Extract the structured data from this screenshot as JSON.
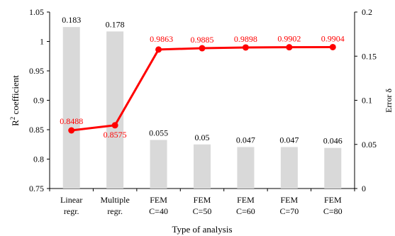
{
  "chart_data": {
    "type": "bar",
    "categories": [
      [
        "Linear",
        "regr."
      ],
      [
        "Multiple",
        "regr."
      ],
      [
        "FEM",
        "C=40"
      ],
      [
        "FEM",
        "C=50"
      ],
      [
        "FEM",
        "C=60"
      ],
      [
        "FEM",
        "C=70"
      ],
      [
        "FEM",
        "C=80"
      ]
    ],
    "series": [
      {
        "type": "bar",
        "axis": "right",
        "color": "#d9d9d9",
        "values": [
          0.183,
          0.178,
          0.055,
          0.05,
          0.047,
          0.047,
          0.046
        ],
        "labels": [
          "0.183",
          "0.178",
          "0.055",
          "0.05",
          "0.047",
          "0.047",
          "0.046"
        ]
      },
      {
        "type": "line",
        "axis": "left",
        "color": "#ff0000",
        "marker": "circle",
        "values": [
          0.8488,
          0.8575,
          0.9863,
          0.9885,
          0.9898,
          0.9902,
          0.9904
        ],
        "labels": [
          "0.8488",
          "0.8575",
          "0.9863",
          "0.9885",
          "0.9898",
          "0.9902",
          "0.9904"
        ]
      }
    ],
    "xlabel": "Type of analysis",
    "ylabel_left": {
      "base": "R",
      "sup": "2",
      "rest": " coefficient"
    },
    "ylabel_right": "Error δ",
    "ylim_left": [
      0.75,
      1.05
    ],
    "yticks_left": [
      "0.75",
      "0.8",
      "0.85",
      "0.9",
      "0.95",
      "1",
      "1.05"
    ],
    "ylim_right": [
      0,
      0.2
    ],
    "yticks_right": [
      "0",
      "0.05",
      "0.1",
      "0.15",
      "0.2"
    ],
    "grid": false,
    "legend": "none"
  }
}
